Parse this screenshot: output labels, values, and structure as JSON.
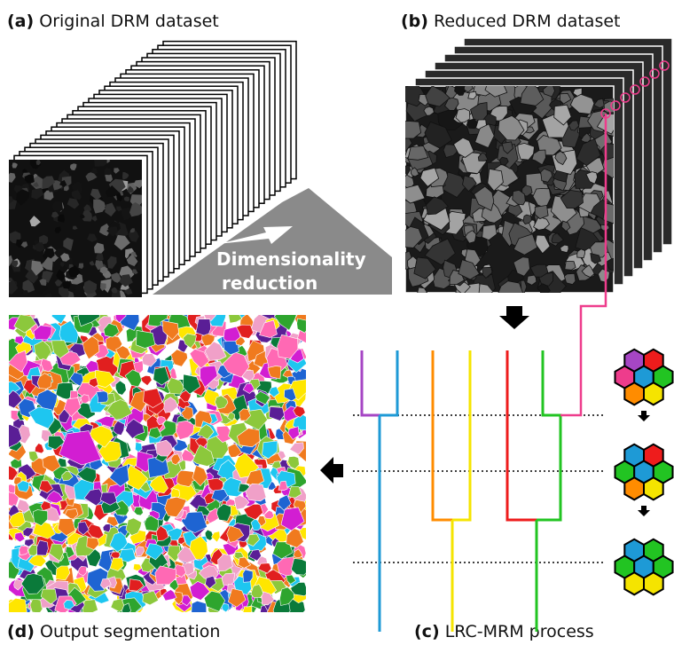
{
  "panels": {
    "a": {
      "label": "(a)",
      "title": "Original DRM dataset"
    },
    "b": {
      "label": "(b)",
      "title": "Reduced DRM dataset"
    },
    "c": {
      "label": "(c)",
      "title": "LRC-MRM process"
    },
    "d": {
      "label": "(d)",
      "title": "Output segmentation"
    }
  },
  "reduction_arrow": {
    "lines": [
      "Dimensionality",
      "reduction"
    ]
  }
}
